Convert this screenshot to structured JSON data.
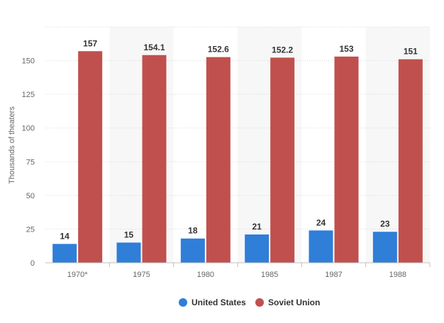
{
  "chart_data": {
    "type": "bar",
    "title": "",
    "xlabel": "",
    "ylabel": "Thousands of theaters",
    "ylim": [
      0,
      175
    ],
    "yticks": [
      0,
      25,
      50,
      75,
      100,
      125,
      150
    ],
    "grid": true,
    "legend_position": "bottom",
    "categories": [
      "1970*",
      "1975",
      "1980",
      "1985",
      "1987",
      "1988"
    ],
    "series": [
      {
        "name": "United States",
        "color": "#2f7ed8",
        "values": [
          14,
          15,
          18,
          21,
          24,
          23
        ],
        "labels": [
          "14",
          "15",
          "18",
          "21",
          "24",
          "23"
        ]
      },
      {
        "name": "Soviet Union",
        "color": "#c0504d",
        "values": [
          157,
          154.1,
          152.6,
          152.2,
          153,
          151
        ],
        "labels": [
          "157",
          "154.1",
          "152.6",
          "152.2",
          "153",
          "151"
        ]
      }
    ]
  }
}
